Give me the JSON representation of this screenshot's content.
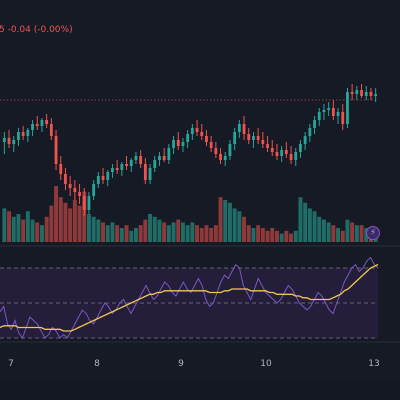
{
  "header": {
    "change_text": "5  -0.04 (-0.00%)"
  },
  "colors": {
    "background": "#161a25",
    "up": "#26a69a",
    "down": "#ef5350",
    "rsi_line": "#7e57c2",
    "rsi_ma": "#f0c850",
    "rsi_band": "#241e3a",
    "price_line": "#ef5350",
    "grid": "#1e222d",
    "text": "#b2b5be"
  },
  "icons": {
    "lightning": "lightning-icon"
  },
  "chart_data": [
    {
      "type": "candlestick",
      "title": "",
      "price_line": 70,
      "ylim": [
        0,
        100
      ],
      "x_tick_labels": [
        "7",
        "8",
        "9",
        "10",
        "13"
      ],
      "candles": [
        {
          "o": 49,
          "h": 54,
          "l": 43,
          "c": 51,
          "v": 60
        },
        {
          "o": 51,
          "h": 55,
          "l": 46,
          "c": 48,
          "v": 55
        },
        {
          "o": 48,
          "h": 52,
          "l": 44,
          "c": 50,
          "v": 45
        },
        {
          "o": 50,
          "h": 56,
          "l": 47,
          "c": 54,
          "v": 50
        },
        {
          "o": 54,
          "h": 57,
          "l": 50,
          "c": 52,
          "v": 40
        },
        {
          "o": 52,
          "h": 56,
          "l": 49,
          "c": 55,
          "v": 55
        },
        {
          "o": 55,
          "h": 60,
          "l": 52,
          "c": 58,
          "v": 40
        },
        {
          "o": 58,
          "h": 62,
          "l": 55,
          "c": 57,
          "v": 35
        },
        {
          "o": 57,
          "h": 61,
          "l": 54,
          "c": 60,
          "v": 30
        },
        {
          "o": 60,
          "h": 63,
          "l": 56,
          "c": 58,
          "v": 45
        },
        {
          "o": 58,
          "h": 61,
          "l": 50,
          "c": 52,
          "v": 65
        },
        {
          "o": 52,
          "h": 55,
          "l": 35,
          "c": 38,
          "v": 100
        },
        {
          "o": 38,
          "h": 42,
          "l": 30,
          "c": 33,
          "v": 80
        },
        {
          "o": 33,
          "h": 36,
          "l": 25,
          "c": 28,
          "v": 70
        },
        {
          "o": 28,
          "h": 32,
          "l": 22,
          "c": 26,
          "v": 60
        },
        {
          "o": 26,
          "h": 30,
          "l": 20,
          "c": 24,
          "v": 75
        },
        {
          "o": 24,
          "h": 28,
          "l": 18,
          "c": 22,
          "v": 65
        },
        {
          "o": 22,
          "h": 26,
          "l": 12,
          "c": 15,
          "v": 90
        },
        {
          "o": 15,
          "h": 24,
          "l": 13,
          "c": 22,
          "v": 50
        },
        {
          "o": 22,
          "h": 30,
          "l": 20,
          "c": 28,
          "v": 45
        },
        {
          "o": 28,
          "h": 34,
          "l": 26,
          "c": 32,
          "v": 40
        },
        {
          "o": 32,
          "h": 36,
          "l": 28,
          "c": 30,
          "v": 35
        },
        {
          "o": 30,
          "h": 35,
          "l": 27,
          "c": 34,
          "v": 30
        },
        {
          "o": 34,
          "h": 38,
          "l": 31,
          "c": 36,
          "v": 35
        },
        {
          "o": 36,
          "h": 40,
          "l": 33,
          "c": 35,
          "v": 30
        },
        {
          "o": 35,
          "h": 39,
          "l": 32,
          "c": 38,
          "v": 25
        },
        {
          "o": 38,
          "h": 42,
          "l": 35,
          "c": 37,
          "v": 30
        },
        {
          "o": 37,
          "h": 41,
          "l": 34,
          "c": 40,
          "v": 20
        },
        {
          "o": 40,
          "h": 44,
          "l": 38,
          "c": 42,
          "v": 25
        },
        {
          "o": 42,
          "h": 45,
          "l": 36,
          "c": 38,
          "v": 30
        },
        {
          "o": 38,
          "h": 41,
          "l": 28,
          "c": 30,
          "v": 40
        },
        {
          "o": 30,
          "h": 38,
          "l": 28,
          "c": 36,
          "v": 50
        },
        {
          "o": 36,
          "h": 42,
          "l": 34,
          "c": 40,
          "v": 45
        },
        {
          "o": 40,
          "h": 44,
          "l": 37,
          "c": 42,
          "v": 40
        },
        {
          "o": 42,
          "h": 46,
          "l": 39,
          "c": 40,
          "v": 35
        },
        {
          "o": 40,
          "h": 48,
          "l": 38,
          "c": 46,
          "v": 30
        },
        {
          "o": 46,
          "h": 52,
          "l": 43,
          "c": 50,
          "v": 35
        },
        {
          "o": 50,
          "h": 54,
          "l": 45,
          "c": 47,
          "v": 40
        },
        {
          "o": 47,
          "h": 51,
          "l": 44,
          "c": 49,
          "v": 35
        },
        {
          "o": 49,
          "h": 55,
          "l": 46,
          "c": 53,
          "v": 30
        },
        {
          "o": 53,
          "h": 58,
          "l": 50,
          "c": 56,
          "v": 35
        },
        {
          "o": 56,
          "h": 60,
          "l": 52,
          "c": 54,
          "v": 30
        },
        {
          "o": 54,
          "h": 58,
          "l": 50,
          "c": 52,
          "v": 25
        },
        {
          "o": 52,
          "h": 55,
          "l": 47,
          "c": 49,
          "v": 30
        },
        {
          "o": 49,
          "h": 52,
          "l": 44,
          "c": 46,
          "v": 25
        },
        {
          "o": 46,
          "h": 49,
          "l": 41,
          "c": 43,
          "v": 30
        },
        {
          "o": 43,
          "h": 46,
          "l": 38,
          "c": 40,
          "v": 80
        },
        {
          "o": 40,
          "h": 44,
          "l": 37,
          "c": 42,
          "v": 75
        },
        {
          "o": 42,
          "h": 50,
          "l": 40,
          "c": 48,
          "v": 70
        },
        {
          "o": 48,
          "h": 56,
          "l": 45,
          "c": 54,
          "v": 60
        },
        {
          "o": 54,
          "h": 60,
          "l": 51,
          "c": 58,
          "v": 55
        },
        {
          "o": 58,
          "h": 62,
          "l": 50,
          "c": 53,
          "v": 45
        },
        {
          "o": 53,
          "h": 56,
          "l": 48,
          "c": 50,
          "v": 30
        },
        {
          "o": 50,
          "h": 54,
          "l": 46,
          "c": 52,
          "v": 25
        },
        {
          "o": 52,
          "h": 56,
          "l": 48,
          "c": 50,
          "v": 30
        },
        {
          "o": 50,
          "h": 54,
          "l": 46,
          "c": 48,
          "v": 25
        },
        {
          "o": 48,
          "h": 52,
          "l": 44,
          "c": 46,
          "v": 20
        },
        {
          "o": 46,
          "h": 50,
          "l": 42,
          "c": 44,
          "v": 25
        },
        {
          "o": 44,
          "h": 48,
          "l": 40,
          "c": 42,
          "v": 20
        },
        {
          "o": 42,
          "h": 47,
          "l": 39,
          "c": 45,
          "v": 15
        },
        {
          "o": 45,
          "h": 49,
          "l": 41,
          "c": 43,
          "v": 20
        },
        {
          "o": 43,
          "h": 47,
          "l": 38,
          "c": 40,
          "v": 15
        },
        {
          "o": 40,
          "h": 46,
          "l": 37,
          "c": 44,
          "v": 20
        },
        {
          "o": 44,
          "h": 50,
          "l": 41,
          "c": 48,
          "v": 80
        },
        {
          "o": 48,
          "h": 54,
          "l": 45,
          "c": 52,
          "v": 70
        },
        {
          "o": 52,
          "h": 58,
          "l": 49,
          "c": 56,
          "v": 60
        },
        {
          "o": 56,
          "h": 62,
          "l": 53,
          "c": 60,
          "v": 55
        },
        {
          "o": 60,
          "h": 66,
          "l": 57,
          "c": 64,
          "v": 45
        },
        {
          "o": 64,
          "h": 68,
          "l": 60,
          "c": 65,
          "v": 40
        },
        {
          "o": 65,
          "h": 69,
          "l": 62,
          "c": 66,
          "v": 35
        },
        {
          "o": 66,
          "h": 70,
          "l": 60,
          "c": 62,
          "v": 30
        },
        {
          "o": 62,
          "h": 66,
          "l": 58,
          "c": 64,
          "v": 25
        },
        {
          "o": 64,
          "h": 68,
          "l": 55,
          "c": 58,
          "v": 20
        },
        {
          "o": 58,
          "h": 76,
          "l": 56,
          "c": 74,
          "v": 40
        },
        {
          "o": 74,
          "h": 78,
          "l": 70,
          "c": 73,
          "v": 35
        },
        {
          "o": 73,
          "h": 77,
          "l": 70,
          "c": 75,
          "v": 30
        },
        {
          "o": 75,
          "h": 78,
          "l": 71,
          "c": 72,
          "v": 30
        },
        {
          "o": 72,
          "h": 77,
          "l": 70,
          "c": 74,
          "v": 25
        },
        {
          "o": 74,
          "h": 76,
          "l": 70,
          "c": 72,
          "v": 25
        },
        {
          "o": 72,
          "h": 76,
          "l": 69,
          "c": 73,
          "v": 20
        }
      ]
    },
    {
      "type": "line",
      "title": "",
      "ylim": [
        0,
        100
      ],
      "reference_lines": [
        70,
        50,
        30
      ],
      "series": [
        {
          "values": [
            45,
            48,
            38,
            35,
            40,
            33,
            30,
            36,
            42,
            40,
            38,
            34,
            30,
            32,
            36,
            34,
            30,
            32,
            30,
            34,
            38,
            42,
            46,
            44,
            40,
            38,
            42,
            46,
            50,
            48,
            44,
            46,
            50,
            52,
            48,
            44,
            48,
            52,
            56,
            60,
            56,
            52,
            54,
            58,
            62,
            60,
            56,
            54,
            58,
            62,
            58,
            56,
            60,
            64,
            60,
            52,
            48,
            50,
            56,
            62,
            66,
            64,
            68,
            72,
            70,
            60,
            56,
            52,
            58,
            64,
            60,
            56,
            54,
            52,
            50,
            52,
            56,
            60,
            58,
            54,
            50,
            48,
            46,
            48,
            52,
            56,
            54,
            50,
            46,
            44,
            50,
            56,
            62,
            66,
            70,
            72,
            68,
            70,
            74,
            76,
            72,
            70
          ]
        },
        {
          "values": [
            36,
            37,
            37,
            37,
            37,
            36,
            36,
            36,
            36,
            36,
            36,
            36,
            35,
            35,
            35,
            35,
            35,
            34,
            34,
            34,
            35,
            36,
            37,
            38,
            39,
            40,
            41,
            42,
            43,
            44,
            45,
            46,
            47,
            48,
            49,
            50,
            51,
            52,
            53,
            54,
            55,
            55,
            56,
            56,
            57,
            57,
            57,
            57,
            57,
            57,
            57,
            57,
            57,
            57,
            57,
            57,
            56,
            56,
            56,
            56,
            57,
            57,
            58,
            58,
            58,
            58,
            58,
            57,
            57,
            57,
            57,
            57,
            56,
            56,
            55,
            55,
            55,
            55,
            55,
            54,
            54,
            53,
            53,
            52,
            52,
            52,
            52,
            52,
            52,
            53,
            54,
            55,
            57,
            58,
            60,
            62,
            64,
            66,
            68,
            70,
            71,
            72
          ]
        }
      ]
    }
  ]
}
